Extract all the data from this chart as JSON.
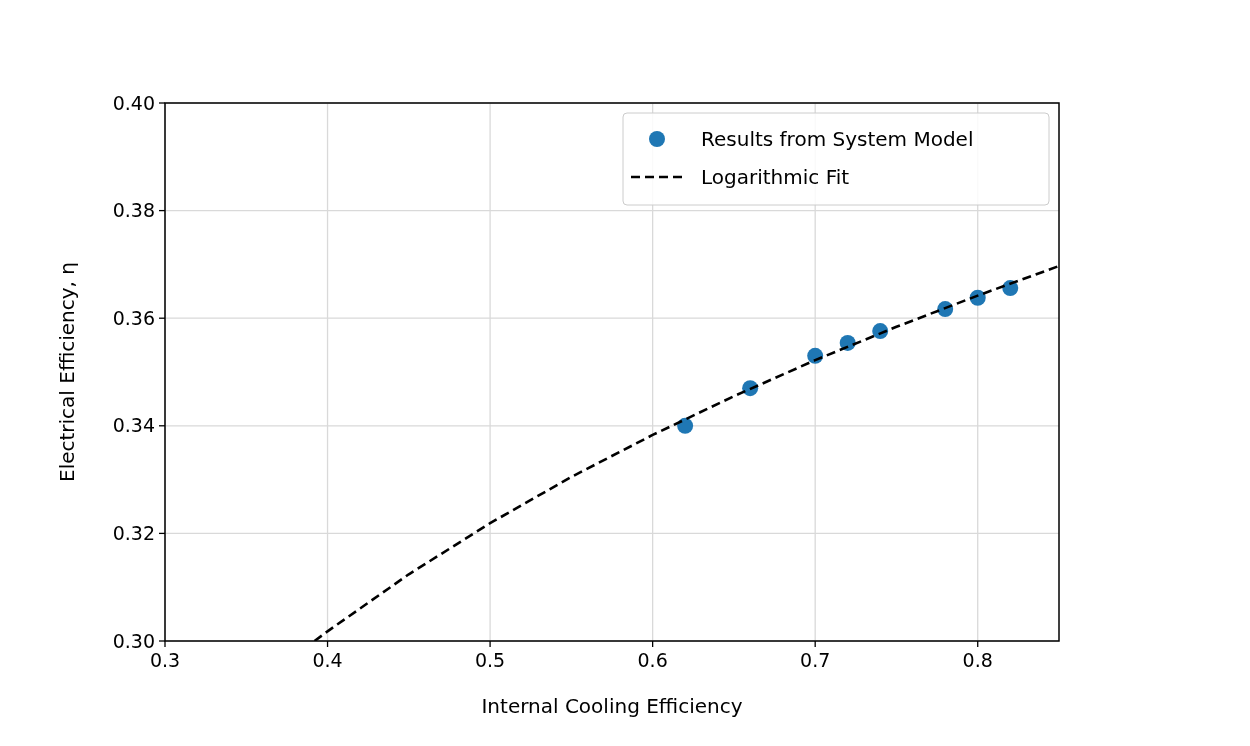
{
  "chart_data": {
    "type": "scatter",
    "xlabel": "Internal Cooling Efficiency",
    "ylabel": "Electrical Efficiency, η",
    "xlim": [
      0.3,
      0.85
    ],
    "xticks": [
      0.3,
      0.4,
      0.5,
      0.6,
      0.7,
      0.8
    ],
    "ylim": [
      0.3,
      0.4
    ],
    "yticks": [
      {
        "value": 0.3,
        "label": "0.30"
      },
      {
        "value": 0.32,
        "label": "0.32"
      },
      {
        "value": 0.34,
        "label": "0.34"
      },
      {
        "value": 0.36,
        "label": "0.36"
      },
      {
        "value": 0.38,
        "label": "0.38"
      },
      {
        "value": 0.4,
        "label": "0.40"
      }
    ],
    "grid": true,
    "legend": "top right",
    "series": [
      {
        "name": "Results from System Model",
        "marker": "circle",
        "color": "#1f77b4",
        "x": [
          0.62,
          0.66,
          0.7,
          0.72,
          0.74,
          0.78,
          0.8,
          0.82
        ],
        "values": [
          0.34,
          0.347,
          0.353,
          0.3554,
          0.3576,
          0.3617,
          0.3638,
          0.3656
        ]
      },
      {
        "name": "Logarithmic Fit",
        "type": "line",
        "line_style": "dashed",
        "marker": "none",
        "color": "#000000",
        "x": [
          0.392,
          0.4,
          0.45,
          0.5,
          0.55,
          0.6,
          0.65,
          0.7,
          0.75,
          0.8,
          0.85
        ],
        "values": [
          0.3,
          0.3018,
          0.3124,
          0.3219,
          0.3305,
          0.3383,
          0.3455,
          0.3522,
          0.3584,
          0.3642,
          0.3697
        ]
      }
    ]
  }
}
